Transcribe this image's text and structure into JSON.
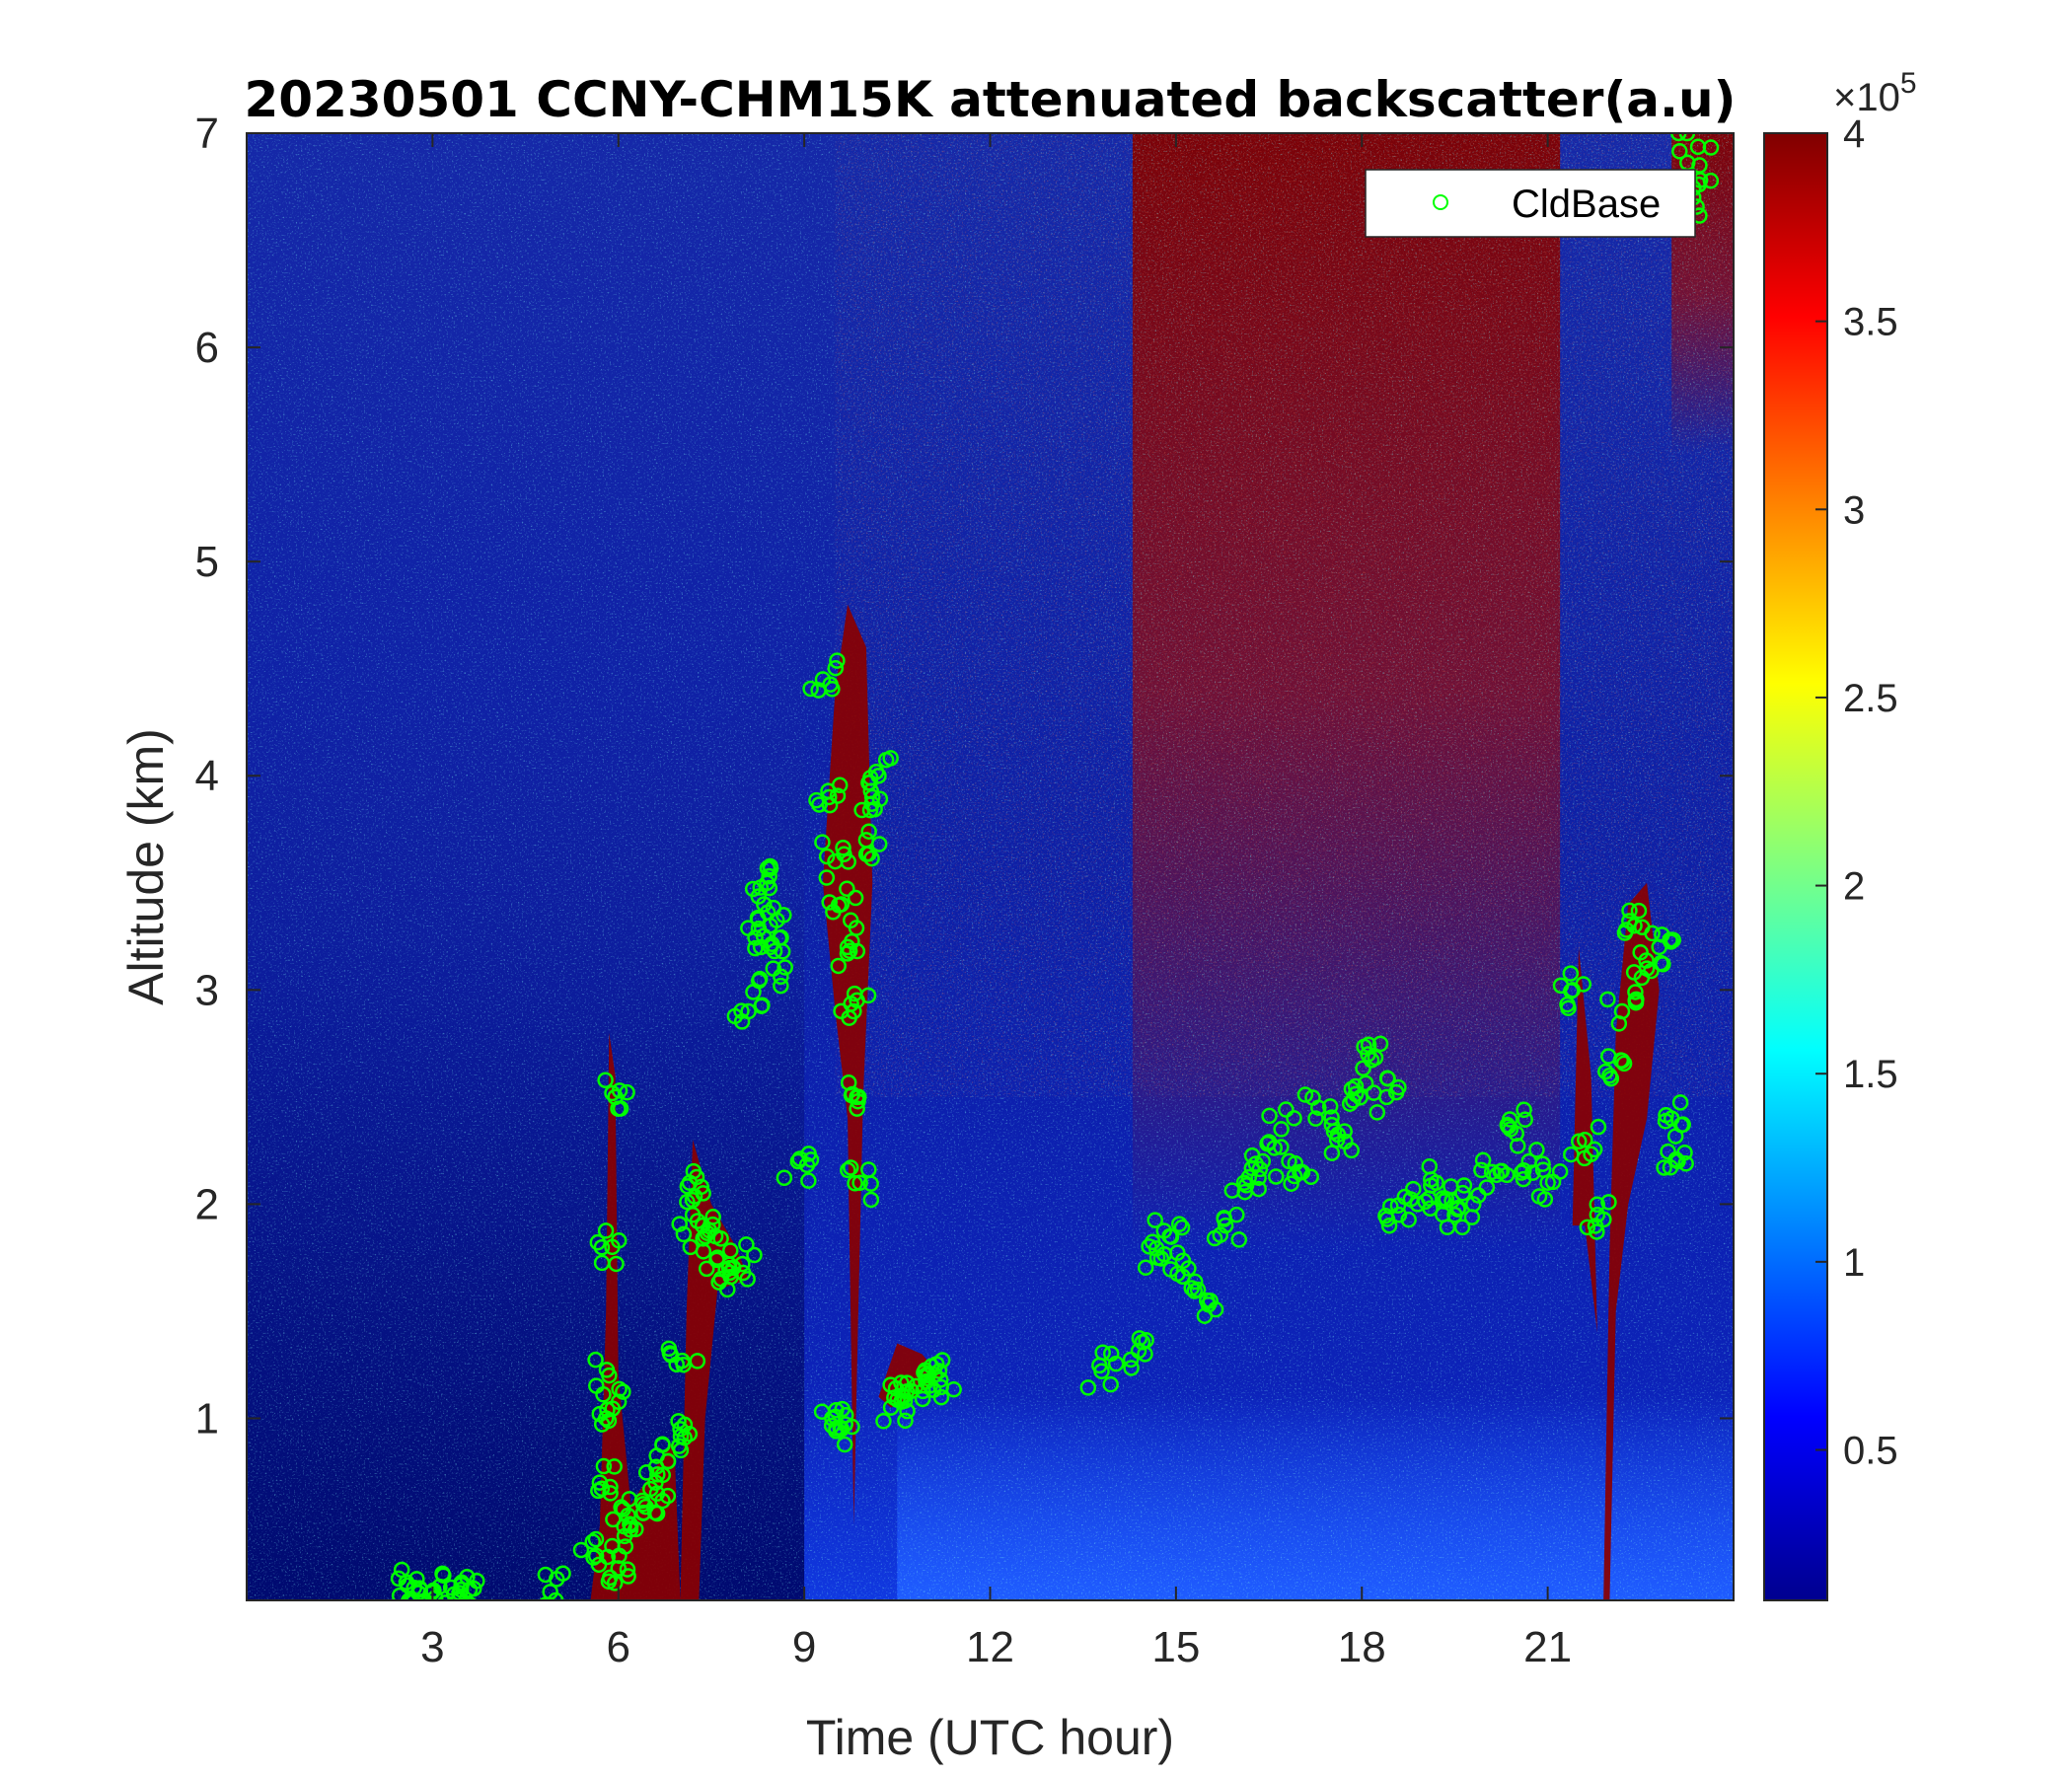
{
  "chart_data": {
    "type": "heatmap",
    "title": "20230501 CCNY-CHM15K attenuated backscatter(a.u)",
    "xlabel": "Time (UTC hour)",
    "ylabel": "Altitude (km)",
    "xlim": [
      0,
      24
    ],
    "ylim": [
      0.15,
      7
    ],
    "xticks": [
      3,
      6,
      9,
      12,
      15,
      18,
      21
    ],
    "xtick_labels": [
      "3",
      "6",
      "9",
      "12",
      "15",
      "18",
      "21"
    ],
    "yticks": [
      1,
      2,
      3,
      4,
      5,
      6,
      7
    ],
    "ytick_labels": [
      "1",
      "2",
      "3",
      "4",
      "5",
      "6",
      "7"
    ],
    "colorbar": {
      "colormap": "jet",
      "range": [
        0.1,
        4
      ],
      "ticks": [
        0.5,
        1,
        1.5,
        2,
        2.5,
        3,
        3.5,
        4
      ],
      "tick_labels": [
        "0.5",
        "1",
        "1.5",
        "2",
        "2.5",
        "3",
        "3.5",
        "4"
      ],
      "multiplier_base": "×10",
      "multiplier_exp": "5"
    },
    "legend": {
      "placement": "top-right",
      "entries": [
        "CldBase"
      ]
    },
    "grid": false,
    "series": [
      {
        "name": "CldBase",
        "marker": "circle",
        "color": "#00ff00",
        "x": [
          2.6,
          2.8,
          3.0,
          3.3,
          3.6,
          4.9,
          5.6,
          5.7,
          5.8,
          5.85,
          5.9,
          5.95,
          6.0,
          6.1,
          6.2,
          6.4,
          6.6,
          6.8,
          7.0,
          7.05,
          7.15,
          7.2,
          7.4,
          7.6,
          7.8,
          8.0,
          8.1,
          8.3,
          8.35,
          8.4,
          8.45,
          8.5,
          8.9,
          9.3,
          9.4,
          9.5,
          9.6,
          9.7,
          9.8,
          9.85,
          9.9,
          10.0,
          10.1,
          10.2,
          9.45,
          9.6,
          10.4,
          10.6,
          10.8,
          11.0,
          11.2,
          13.8,
          14.5,
          14.7,
          14.9,
          15.2,
          15.5,
          15.8,
          16.1,
          16.4,
          16.7,
          17.0,
          17.3,
          17.6,
          17.9,
          18.1,
          18.4,
          18.6,
          18.9,
          19.2,
          19.5,
          19.8,
          20.1,
          20.4,
          20.7,
          21.0,
          21.4,
          21.6,
          21.8,
          22.0,
          22.2,
          22.4,
          22.6,
          22.8,
          23.0,
          23.1,
          23.25,
          23.35,
          23.45
        ],
        "y": [
          0.22,
          0.2,
          0.19,
          0.21,
          0.2,
          0.19,
          0.35,
          0.7,
          1.0,
          1.2,
          1.8,
          2.5,
          0.3,
          0.45,
          0.5,
          0.6,
          0.7,
          0.8,
          0.95,
          1.25,
          2.1,
          1.95,
          1.85,
          1.75,
          1.68,
          1.72,
          2.9,
          3.2,
          3.4,
          3.5,
          3.3,
          3.1,
          2.2,
          4.45,
          3.9,
          3.6,
          3.4,
          3.2,
          2.9,
          2.5,
          2.1,
          3.7,
          3.9,
          4.0,
          1.0,
          0.95,
          1.05,
          1.1,
          1.15,
          1.2,
          1.18,
          1.22,
          1.3,
          1.75,
          1.85,
          1.7,
          1.55,
          1.9,
          2.1,
          2.2,
          2.35,
          2.15,
          2.45,
          2.3,
          2.55,
          2.7,
          2.5,
          1.95,
          2.0,
          2.1,
          1.95,
          2.0,
          2.15,
          2.35,
          2.2,
          2.1,
          3.0,
          2.3,
          1.95,
          2.6,
          2.9,
          3.3,
          3.1,
          3.2,
          2.4,
          2.2,
          7.0,
          6.7,
          6.85
        ]
      }
    ]
  }
}
